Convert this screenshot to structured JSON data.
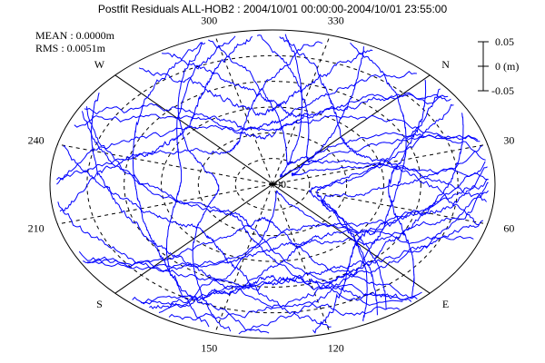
{
  "chart_data": {
    "type": "scatter",
    "subtype": "polar skyplot with residual traces",
    "title": "Postfit Residuals ALL-HOB2 : 2004/10/01 00:00:00-2004/10/01 23:55:00",
    "stats": {
      "mean": "MEAN : 0.0000m",
      "rms": "RMS : 0.0051m"
    },
    "azimuth_labels": [
      {
        "az": 0,
        "text": "N"
      },
      {
        "az": 30,
        "text": "30"
      },
      {
        "az": 60,
        "text": "60"
      },
      {
        "az": 90,
        "text": "E"
      },
      {
        "az": 120,
        "text": "120"
      },
      {
        "az": 150,
        "text": "150"
      },
      {
        "az": 180,
        "text": "S"
      },
      {
        "az": 210,
        "text": "210"
      },
      {
        "az": 240,
        "text": "240"
      },
      {
        "az": 270,
        "text": "W"
      },
      {
        "az": 300,
        "text": "300"
      },
      {
        "az": 330,
        "text": "330"
      }
    ],
    "center_label": "90",
    "elevation_rings": [
      15,
      30,
      45,
      60,
      75
    ],
    "scale_bar": {
      "ticks": [
        "0.05",
        "0 (m)",
        "-0.05"
      ],
      "unit": "m"
    },
    "trace_color": "#0000ff",
    "grid": true
  }
}
